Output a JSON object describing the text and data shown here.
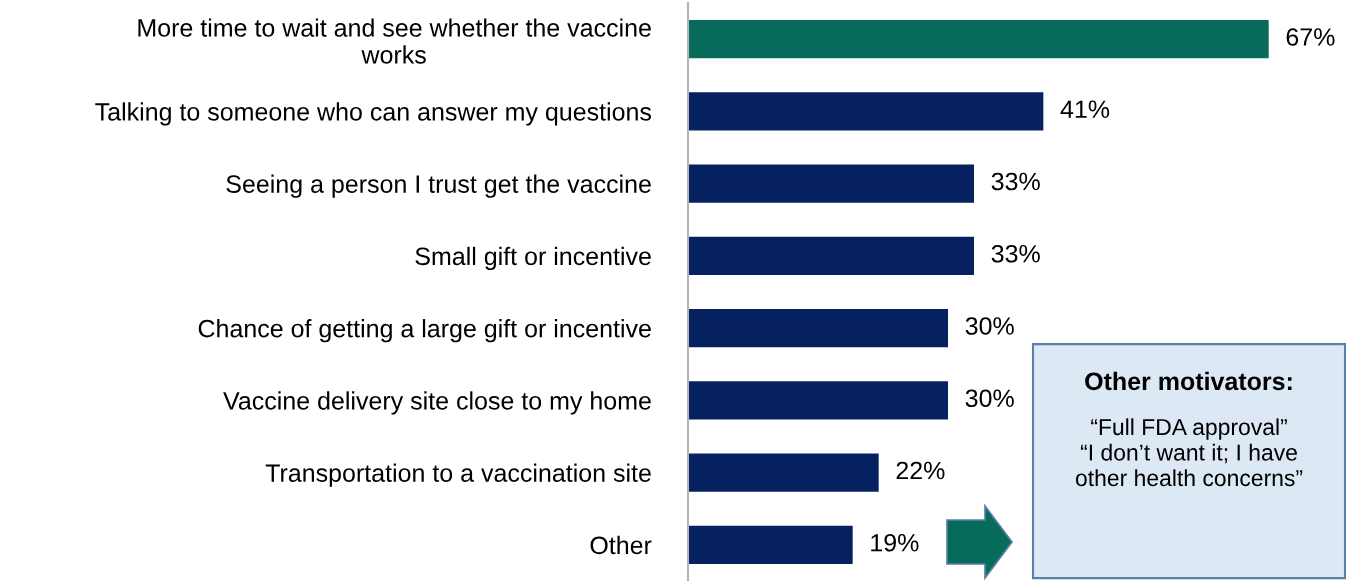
{
  "chart_data": {
    "type": "bar",
    "orientation": "horizontal",
    "categories": [
      "More time to wait and see whether the vaccine\nworks",
      "Talking to someone who can answer my questions",
      "Seeing a person I trust get the vaccine",
      "Small gift or incentive",
      "Chance of getting a large gift or incentive",
      "Vaccine delivery site close to my home",
      "Transportation to a vaccination site",
      "Other"
    ],
    "values": [
      67,
      41,
      33,
      33,
      30,
      30,
      22,
      19
    ],
    "colors": [
      "#076b5c",
      "#06215f",
      "#06215f",
      "#06215f",
      "#06215f",
      "#06215f",
      "#06215f",
      "#06215f"
    ],
    "value_labels": [
      "67%",
      "41%",
      "33%",
      "33%",
      "30%",
      "30%",
      "22%",
      "19%"
    ],
    "annotations": [
      "Other motivators:",
      "“Full FDA approval”\n“I don’t want it; I have\nother health concerns”"
    ],
    "grid": false
  }
}
